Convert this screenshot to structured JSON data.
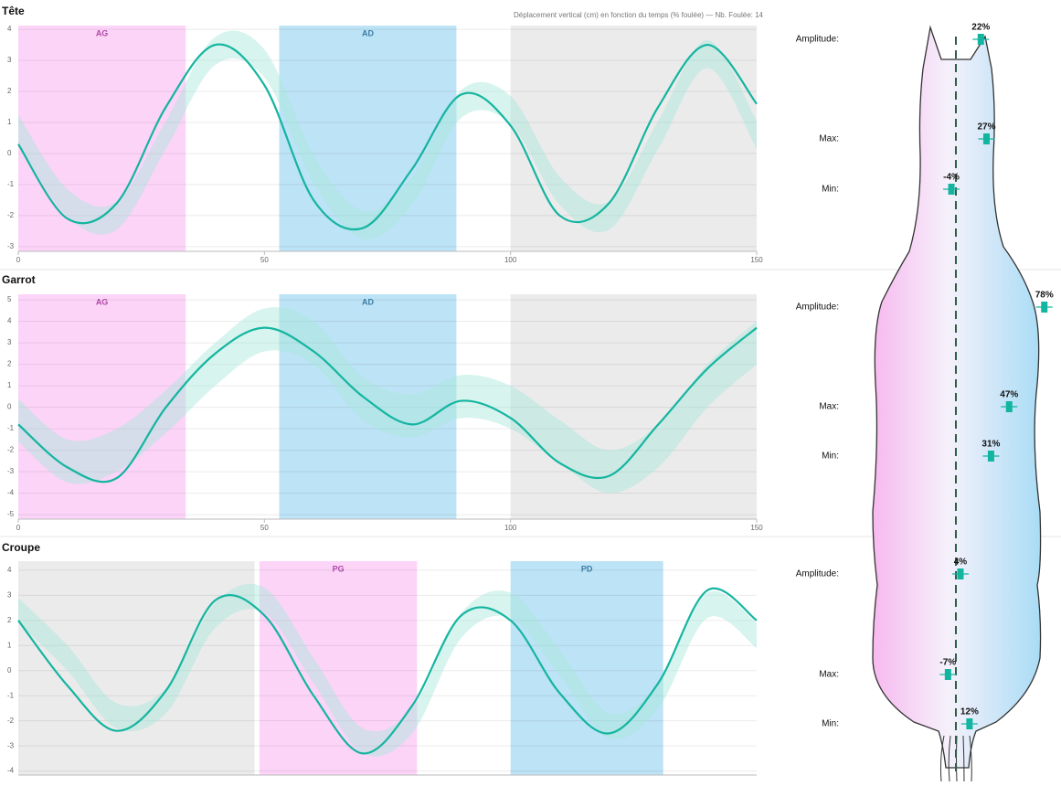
{
  "chart_data": [
    {
      "type": "line",
      "title": "Tête",
      "subtitle": "Déplacement vertical (cm) en fonction du temps (% foulée) — Nb. Foulée: 14",
      "xlim": [
        0,
        150
      ],
      "xticks": [
        0,
        50,
        100,
        150
      ],
      "ylim": [
        -3.15,
        4.12
      ],
      "yticks": [
        -3,
        -2,
        -1,
        0,
        1,
        2,
        3,
        4
      ],
      "grid": true,
      "regions": [
        {
          "label": "AG",
          "start": 0,
          "end": 34,
          "color": "#fcd4f8",
          "label_color": "#b04aa8"
        },
        {
          "label": "AD",
          "start": 53,
          "end": 89,
          "color": "#bde3f6",
          "label_color": "#3a7da6"
        },
        {
          "start": 100,
          "end": 150,
          "color": "#ebebeb"
        }
      ],
      "x": [
        0,
        10,
        20,
        30,
        40,
        50,
        60,
        70,
        80,
        90,
        100,
        110,
        120,
        130,
        140,
        150
      ],
      "series": [
        {
          "color": "#14b5a0",
          "values": [
            0.3,
            -2.1,
            -1.6,
            1.5,
            3.5,
            2.2,
            -1.5,
            -2.4,
            -0.5,
            1.9,
            0.9,
            -2.0,
            -1.6,
            1.5,
            3.5,
            1.6
          ],
          "band": {
            "color": "#a6e6da",
            "lower": [
              0.35,
              -2.05,
              -2.45,
              0.15,
              2.85,
              2.45,
              -0.95,
              -2.75,
              -1.65,
              1.15,
              0.95,
              -1.65,
              -2.45,
              0.15,
              2.75,
              0.15
            ],
            "upper": [
              1.25,
              -1.15,
              -1.55,
              1.05,
              3.75,
              3.35,
              -0.05,
              -1.85,
              -0.75,
              2.05,
              1.85,
              -0.75,
              -1.55,
              1.05,
              3.65,
              1.05
            ]
          }
        }
      ]
    },
    {
      "type": "line",
      "title": "Garrot",
      "xlim": [
        0,
        150
      ],
      "xticks": [
        0,
        50,
        100,
        150
      ],
      "ylim": [
        -5.21,
        5.26
      ],
      "yticks": [
        -5,
        -4,
        -3,
        -2,
        -1,
        0,
        1,
        2,
        3,
        4,
        5
      ],
      "grid": true,
      "regions": [
        {
          "label": "AG",
          "start": 0,
          "end": 34,
          "color": "#fcd4f8",
          "label_color": "#b04aa8"
        },
        {
          "label": "AD",
          "start": 53,
          "end": 89,
          "color": "#bde3f6",
          "label_color": "#3a7da6"
        },
        {
          "start": 100,
          "end": 150,
          "color": "#ebebeb"
        }
      ],
      "x": [
        0,
        10,
        20,
        30,
        40,
        50,
        60,
        70,
        80,
        90,
        100,
        110,
        120,
        130,
        140,
        150
      ],
      "series": [
        {
          "color": "#14b5a0",
          "values": [
            -0.8,
            -2.8,
            -3.3,
            0.0,
            2.5,
            3.7,
            2.6,
            0.5,
            -0.8,
            0.3,
            -0.5,
            -2.6,
            -3.2,
            -0.8,
            1.8,
            3.7
          ],
          "band": {
            "color": "#a6e6da",
            "lower": [
              -1.6,
              -3.5,
              -3.0,
              -1.2,
              1.0,
              2.6,
              2.0,
              -0.6,
              -1.4,
              -0.5,
              -1.0,
              -2.6,
              -4.0,
              -2.8,
              0.0,
              2.0
            ],
            "upper": [
              0.4,
              -1.5,
              -1.0,
              0.8,
              3.0,
              4.6,
              4.0,
              1.4,
              0.6,
              1.5,
              1.0,
              -0.6,
              -2.0,
              -0.8,
              2.0,
              4.0
            ]
          }
        }
      ]
    },
    {
      "type": "line",
      "title": "Croupe",
      "xlim": [
        0,
        150
      ],
      "ylim": [
        -4.16,
        4.36
      ],
      "yticks": [
        -4,
        -3,
        -2,
        -1,
        0,
        1,
        2,
        3,
        4
      ],
      "grid": true,
      "regions": [
        {
          "start": 0,
          "end": 48,
          "color": "#ebebeb"
        },
        {
          "label": "PG",
          "start": 49,
          "end": 81,
          "color": "#fcd4f8",
          "label_color": "#b04aa8"
        },
        {
          "label": "PD",
          "start": 100,
          "end": 131,
          "color": "#bde3f6",
          "label_color": "#3a7da6"
        }
      ],
      "x": [
        0,
        10,
        20,
        30,
        40,
        50,
        60,
        70,
        80,
        90,
        100,
        110,
        120,
        130,
        140,
        150
      ],
      "series": [
        {
          "color": "#14b5a0",
          "values": [
            2.0,
            -0.6,
            -2.4,
            -0.8,
            2.8,
            2.2,
            -1.0,
            -3.3,
            -1.4,
            2.2,
            2.0,
            -0.9,
            -2.5,
            -0.5,
            3.2,
            2.0
          ],
          "band": {
            "color": "#a6e6da",
            "lower": [
              1.9,
              0.0,
              -2.3,
              -1.7,
              1.7,
              2.3,
              -0.5,
              -3.3,
              -2.5,
              1.3,
              2.1,
              -0.2,
              -2.7,
              -1.5,
              2.1,
              0.9
            ],
            "upper": [
              2.9,
              1.0,
              -1.3,
              -0.7,
              2.7,
              3.3,
              0.5,
              -2.3,
              -1.5,
              2.3,
              3.1,
              0.8,
              -1.7,
              -0.5,
              3.1,
              1.9
            ]
          }
        }
      ]
    }
  ],
  "body_panel": {
    "marker_color": "#14b5a0",
    "sections": [
      {
        "rows": [
          {
            "label": "Amplitude:",
            "value": 22,
            "value_label": "22%"
          },
          {
            "label": "Max:",
            "value": 27,
            "value_label": "27%"
          },
          {
            "label": "Min:",
            "value": -4,
            "value_label": "-4%"
          }
        ]
      },
      {
        "rows": [
          {
            "label": "Amplitude:",
            "value": 78,
            "value_label": "78%"
          },
          {
            "label": "Max:",
            "value": 47,
            "value_label": "47%"
          },
          {
            "label": "Min:",
            "value": 31,
            "value_label": "31%"
          }
        ]
      },
      {
        "rows": [
          {
            "label": "Amplitude:",
            "value": 4,
            "value_label": "4%"
          },
          {
            "label": "Max:",
            "value": -7,
            "value_label": "-7%"
          },
          {
            "label": "Min:",
            "value": 12,
            "value_label": "12%"
          }
        ]
      }
    ]
  }
}
